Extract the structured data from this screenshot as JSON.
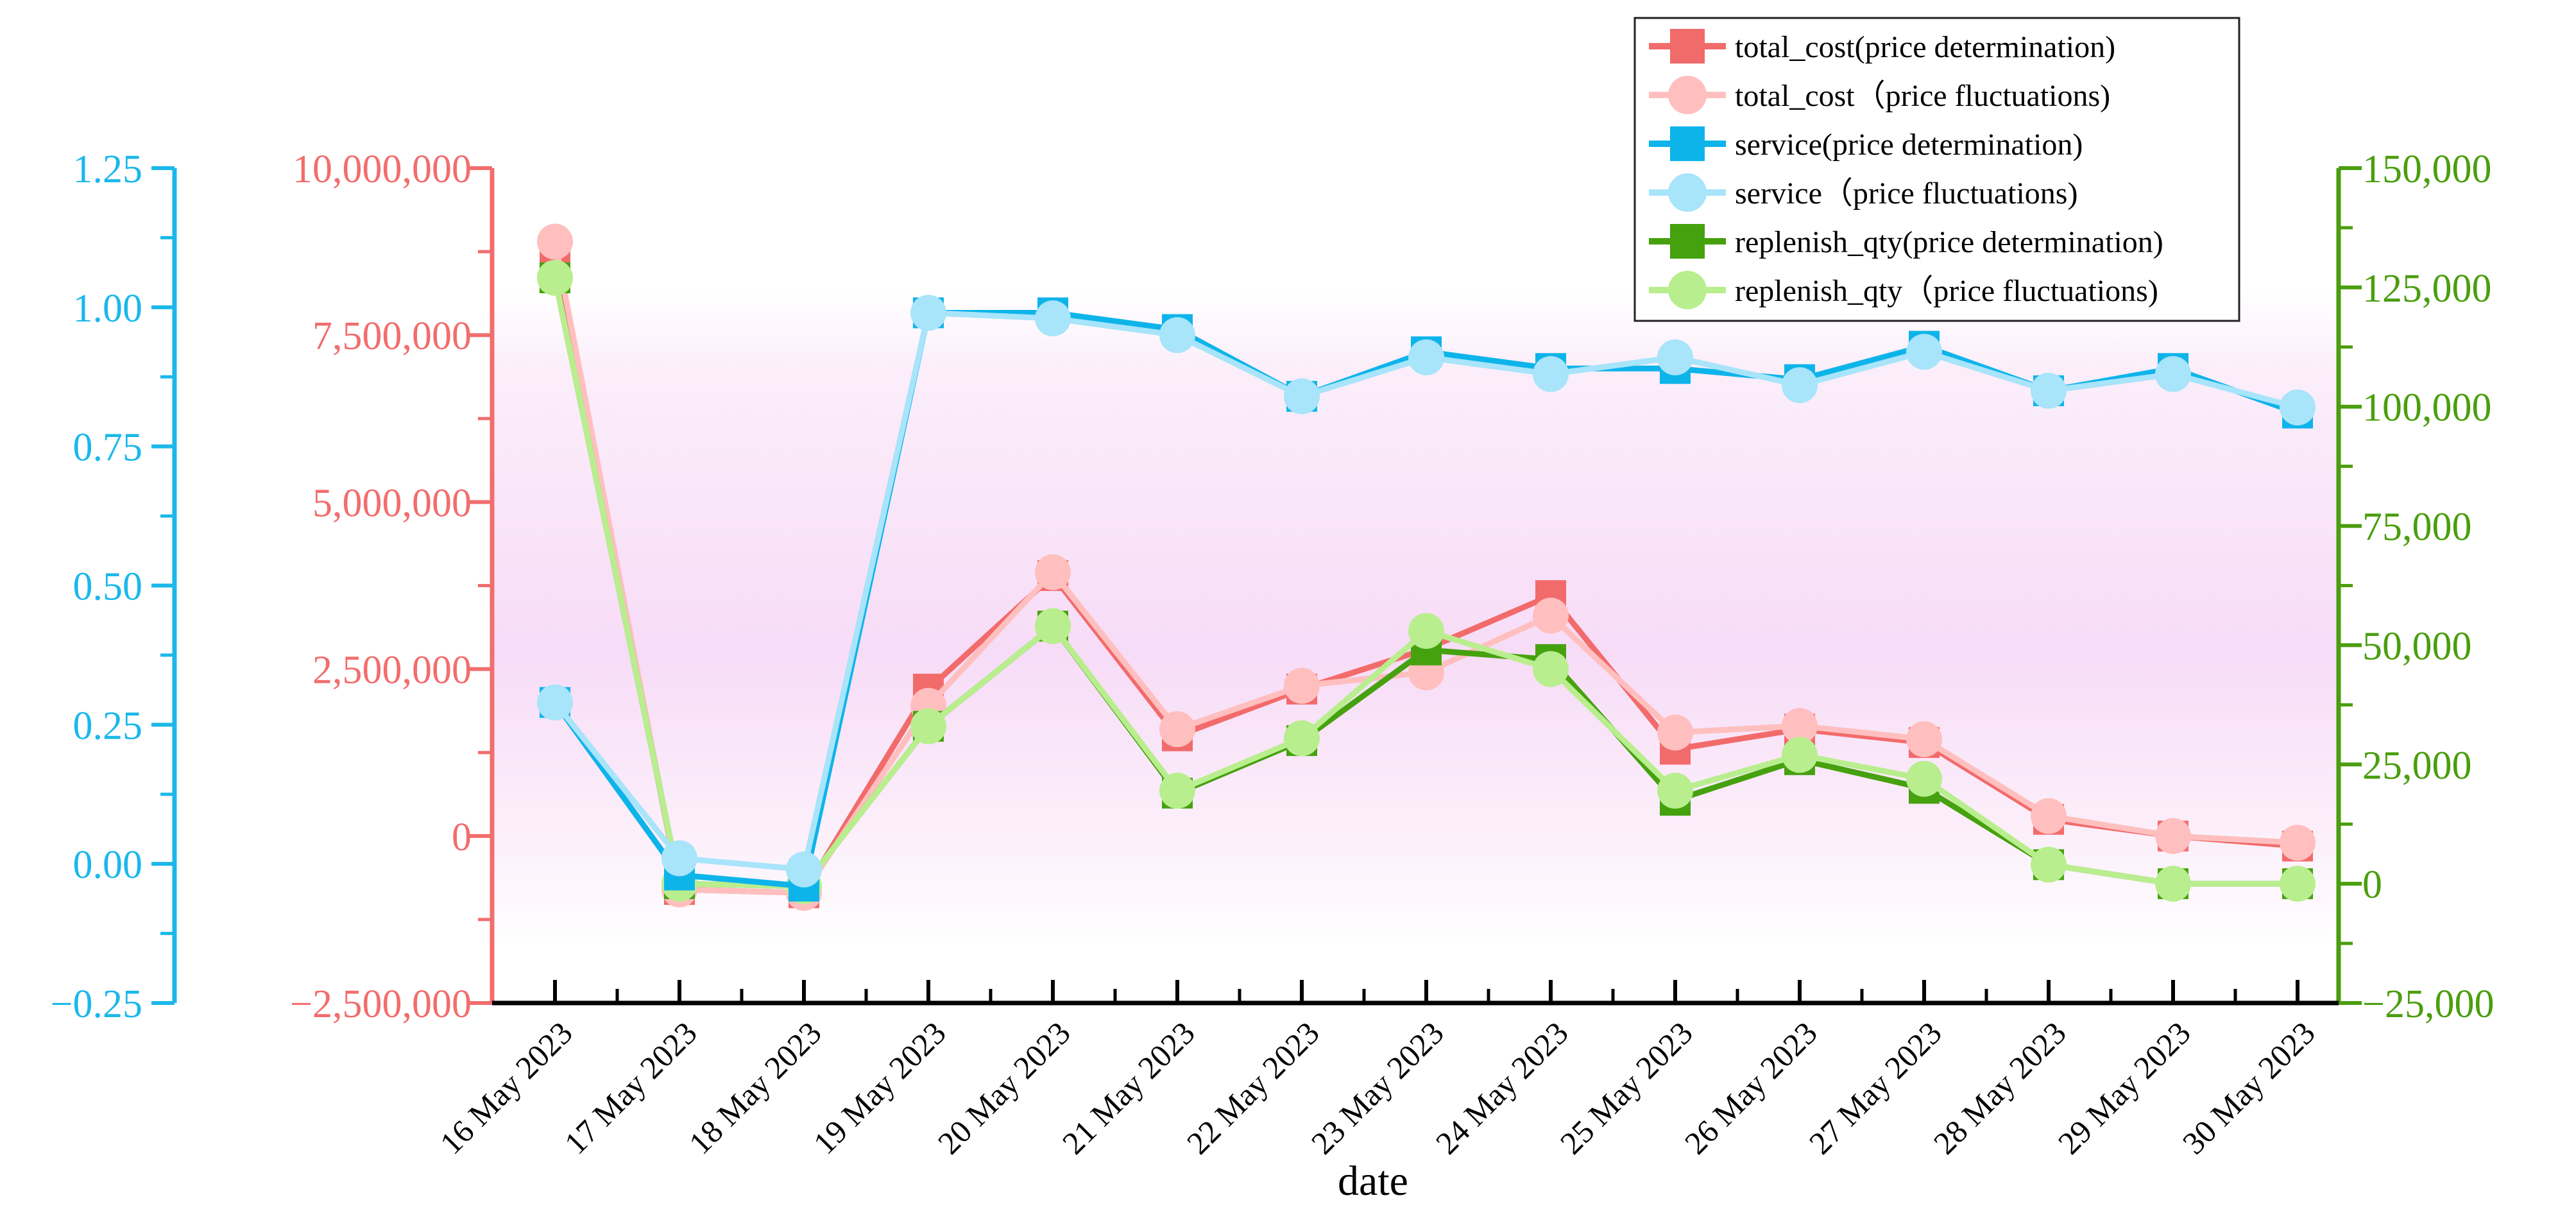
{
  "chart_data": {
    "type": "line",
    "title": "",
    "xlabel": "date",
    "categories": [
      "16 May 2023",
      "17 May 2023",
      "18 May 2023",
      "19 May 2023",
      "20 May 2023",
      "21 May 2023",
      "22 May 2023",
      "23 May 2023",
      "24 May 2023",
      "25 May 2023",
      "26 May 2023",
      "27 May 2023",
      "28 May 2023",
      "29 May 2023",
      "30 May 2023"
    ],
    "axes": {
      "service": {
        "label": "",
        "range": [
          -0.25,
          1.25
        ],
        "ticks": [
          -0.25,
          0,
          0.25,
          0.5,
          0.75,
          1,
          1.25
        ],
        "tick_labels": [
          "−0.25",
          "0.00",
          "0.25",
          "0.50",
          "0.75",
          "1.00",
          "1.25"
        ],
        "color": "#1ab8ea"
      },
      "total_cost": {
        "label": "",
        "range": [
          -2500000,
          10000000
        ],
        "ticks": [
          -2500000,
          0,
          2500000,
          5000000,
          7500000,
          10000000
        ],
        "tick_labels": [
          "−2,500,000",
          "0",
          "2,500,000",
          "5,000,000",
          "7,500,000",
          "10,000,000"
        ],
        "color": "#f26d6d"
      },
      "replenish_qty": {
        "label": "",
        "range": [
          -25000,
          150000
        ],
        "ticks": [
          -25000,
          0,
          25000,
          50000,
          75000,
          100000,
          125000,
          150000
        ],
        "tick_labels": [
          "−25,000",
          "0",
          "25,000",
          "50,000",
          "75,000",
          "100,000",
          "125,000",
          "150,000"
        ],
        "color": "#4a9e0e"
      }
    },
    "series": [
      {
        "name": "total_cost(price determination)",
        "axis": "total_cost",
        "marker": "square",
        "color": "#f26b6b",
        "values": [
          8750000,
          -800000,
          -850000,
          2200000,
          3900000,
          1500000,
          2200000,
          2800000,
          3600000,
          1300000,
          1600000,
          1400000,
          250000,
          0,
          -150000
        ]
      },
      {
        "name": "total_cost（price fluctuations)",
        "axis": "total_cost",
        "marker": "circle",
        "color": "#ffbfbf",
        "values": [
          8900000,
          -800000,
          -850000,
          1950000,
          3950000,
          1600000,
          2250000,
          2450000,
          3300000,
          1550000,
          1650000,
          1450000,
          300000,
          0,
          -100000
        ]
      },
      {
        "name": "service(price determination)",
        "axis": "service",
        "marker": "square",
        "color": "#0db4ea",
        "values": [
          0.29,
          -0.02,
          -0.04,
          0.99,
          0.99,
          0.96,
          0.84,
          0.92,
          0.89,
          0.89,
          0.87,
          0.93,
          0.85,
          0.89,
          0.81
        ]
      },
      {
        "name": "service（price fluctuations)",
        "axis": "service",
        "marker": "circle",
        "color": "#a8e4fa",
        "values": [
          0.29,
          0.01,
          -0.01,
          0.99,
          0.98,
          0.95,
          0.84,
          0.91,
          0.88,
          0.91,
          0.86,
          0.92,
          0.85,
          0.88,
          0.82
        ]
      },
      {
        "name": "replenish_qty(price determination)",
        "axis": "replenish_qty",
        "marker": "square",
        "color": "#46a10f",
        "values": [
          127000,
          0,
          -500,
          33000,
          54000,
          19000,
          30000,
          49000,
          47000,
          17500,
          26000,
          20000,
          4000,
          0,
          0
        ]
      },
      {
        "name": "replenish_qty（price fluctuations)",
        "axis": "replenish_qty",
        "marker": "circle",
        "color": "#b9ee8f",
        "values": [
          127000,
          0,
          -500,
          33000,
          54000,
          19500,
          30500,
          53000,
          45000,
          19500,
          27000,
          22000,
          4000,
          0,
          0
        ]
      }
    ],
    "legend": "top-right",
    "background": "pink gradient band behind data area",
    "grid": false
  }
}
